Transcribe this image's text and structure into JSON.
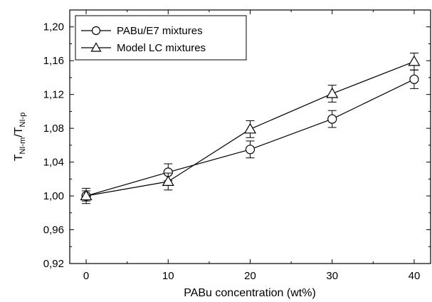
{
  "chart_data": {
    "type": "line",
    "title": "",
    "xlabel": "PABu concentration (wt%)",
    "ylabel_main": "T",
    "ylabel_sub1": "NI-m",
    "ylabel_sep": "/T",
    "ylabel_sub2": "NI-p",
    "xlim": [
      -2,
      42
    ],
    "ylim": [
      0.92,
      1.22
    ],
    "xticks": [
      0,
      10,
      20,
      30,
      40
    ],
    "xtick_labels": [
      "0",
      "10",
      "20",
      "30",
      "40"
    ],
    "yticks": [
      0.92,
      0.96,
      1.0,
      1.04,
      1.08,
      1.12,
      1.16,
      1.2
    ],
    "ytick_labels": [
      "0,92",
      "0,96",
      "1,00",
      "1,04",
      "1,08",
      "1,12",
      "1,16",
      "1,20"
    ],
    "grid": false,
    "legend_position": "top-left",
    "series": [
      {
        "name": "PABu/E7 mixtures",
        "marker": "circle",
        "x": [
          0,
          10,
          20,
          30,
          40
        ],
        "y": [
          1.0,
          1.028,
          1.055,
          1.091,
          1.138
        ],
        "err": [
          0.009,
          0.01,
          0.01,
          0.01,
          0.011
        ]
      },
      {
        "name": "Model LC mixtures",
        "marker": "triangle",
        "x": [
          0,
          10,
          20,
          30,
          40
        ],
        "y": [
          1.0,
          1.017,
          1.079,
          1.121,
          1.159
        ],
        "err": [
          0.006,
          0.01,
          0.01,
          0.01,
          0.01
        ]
      }
    ]
  }
}
